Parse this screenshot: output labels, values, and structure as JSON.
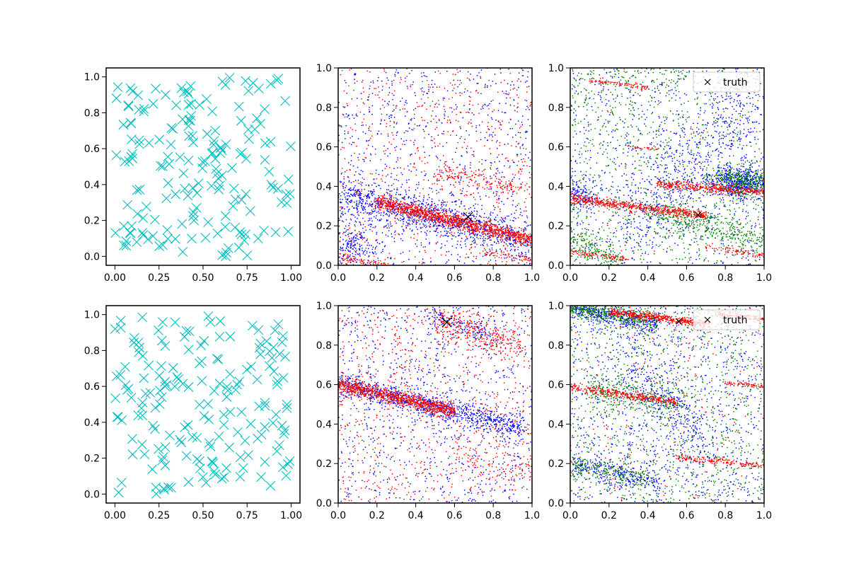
{
  "figure": {
    "background": "#ffffff"
  },
  "chart_data": [
    {
      "panel": "top-left",
      "type": "scatter",
      "marker": "x",
      "xlim": [
        -0.05,
        1.05
      ],
      "ylim": [
        -0.05,
        1.05
      ],
      "xticks": [
        "0.00",
        "0.25",
        "0.50",
        "0.75",
        "1.00"
      ],
      "yticks": [
        "0.0",
        "0.2",
        "0.4",
        "0.6",
        "0.8",
        "1.0"
      ],
      "legend": null,
      "series": [
        {
          "color": "#00bfbf",
          "marker": "x",
          "seed": 11,
          "count": 180,
          "clusters": [
            {
              "kind": "uniform",
              "x": [
                0.0,
                1.0
              ],
              "y": [
                0.0,
                1.0
              ],
              "frac": 1.0
            }
          ]
        }
      ]
    },
    {
      "panel": "top-middle",
      "type": "scatter",
      "marker": "dot",
      "xlim": [
        0,
        1
      ],
      "ylim": [
        0,
        1
      ],
      "xticks": [
        "0.0",
        "0.2",
        "0.4",
        "0.6",
        "0.8",
        "1.0"
      ],
      "yticks": [
        "0.0",
        "0.2",
        "0.4",
        "0.6",
        "0.8",
        "1.0"
      ],
      "legend": null,
      "truth": {
        "x": 0.67,
        "y": 0.245,
        "size": "large"
      },
      "series": [
        {
          "color": "#0000ff",
          "seed": 21,
          "count": 2200,
          "clusters": [
            {
              "kind": "band",
              "x0": 0.0,
              "x1": 1.0,
              "y0": 0.36,
              "y1": 0.12,
              "spread": 0.05,
              "frac": 0.5
            },
            {
              "kind": "blob",
              "cx": 0.08,
              "cy": 0.1,
              "sx": 0.07,
              "sy": 0.06,
              "frac": 0.1
            },
            {
              "kind": "uniform",
              "x": [
                0.0,
                1.0
              ],
              "y": [
                0.0,
                1.0
              ],
              "frac": 0.4
            }
          ]
        },
        {
          "color": "#ff0000",
          "seed": 22,
          "count": 2200,
          "clusters": [
            {
              "kind": "band",
              "x0": 0.2,
              "x1": 1.0,
              "y0": 0.32,
              "y1": 0.13,
              "spread": 0.018,
              "frac": 0.55
            },
            {
              "kind": "band",
              "x0": 0.5,
              "x1": 0.95,
              "y0": 0.47,
              "y1": 0.4,
              "spread": 0.025,
              "frac": 0.08
            },
            {
              "kind": "band",
              "x0": 0.0,
              "x1": 0.25,
              "y0": 0.04,
              "y1": 0.0,
              "spread": 0.012,
              "frac": 0.04
            },
            {
              "kind": "band",
              "x0": 0.75,
              "x1": 1.0,
              "y0": 0.06,
              "y1": 0.03,
              "spread": 0.012,
              "frac": 0.03
            },
            {
              "kind": "uniform",
              "x": [
                0.0,
                1.0
              ],
              "y": [
                0.0,
                1.0
              ],
              "frac": 0.3
            }
          ]
        }
      ]
    },
    {
      "panel": "top-right",
      "type": "scatter",
      "marker": "dot",
      "xlim": [
        0,
        1
      ],
      "ylim": [
        0,
        1
      ],
      "xticks": [
        "0.0",
        "0.2",
        "0.4",
        "0.6",
        "0.8",
        "1.0"
      ],
      "yticks": [
        "0.0",
        "0.2",
        "0.4",
        "0.6",
        "0.8",
        "1.0"
      ],
      "legend": {
        "label": "truth",
        "position": "top-right"
      },
      "truth": {
        "x": 0.66,
        "y": 0.255,
        "size": "small"
      },
      "series": [
        {
          "color": "#0000ff",
          "seed": 31,
          "count": 2000,
          "clusters": [
            {
              "kind": "blob",
              "cx": 0.88,
              "cy": 0.42,
              "sx": 0.08,
              "sy": 0.04,
              "frac": 0.25
            },
            {
              "kind": "blob",
              "cx": 0.05,
              "cy": 0.35,
              "sx": 0.05,
              "sy": 0.04,
              "frac": 0.08
            },
            {
              "kind": "band",
              "x0": 0.3,
              "x1": 1.0,
              "y0": 0.2,
              "y1": 0.85,
              "spread": 0.15,
              "frac": 0.3
            },
            {
              "kind": "uniform",
              "x": [
                0.0,
                1.0
              ],
              "y": [
                0.0,
                1.0
              ],
              "frac": 0.37
            }
          ]
        },
        {
          "color": "#008000",
          "seed": 32,
          "count": 2000,
          "clusters": [
            {
              "kind": "blob",
              "cx": 0.88,
              "cy": 0.42,
              "sx": 0.08,
              "sy": 0.04,
              "frac": 0.2
            },
            {
              "kind": "band",
              "x0": 0.4,
              "x1": 1.0,
              "y0": 0.28,
              "y1": 0.12,
              "spread": 0.04,
              "frac": 0.2
            },
            {
              "kind": "band",
              "x0": 0.0,
              "x1": 0.25,
              "y0": 0.15,
              "y1": 0.0,
              "spread": 0.04,
              "frac": 0.1
            },
            {
              "kind": "band",
              "x0": 0.0,
              "x1": 0.6,
              "y0": 0.92,
              "y1": 1.0,
              "spread": 0.06,
              "frac": 0.05
            },
            {
              "kind": "uniform",
              "x": [
                0.0,
                1.0
              ],
              "y": [
                0.0,
                1.0
              ],
              "frac": 0.45
            }
          ]
        },
        {
          "color": "#ff0000",
          "seed": 33,
          "count": 1300,
          "clusters": [
            {
              "kind": "band",
              "x0": 0.0,
              "x1": 0.7,
              "y0": 0.34,
              "y1": 0.25,
              "spread": 0.012,
              "frac": 0.45
            },
            {
              "kind": "band",
              "x0": 0.45,
              "x1": 1.0,
              "y0": 0.41,
              "y1": 0.37,
              "spread": 0.012,
              "frac": 0.3
            },
            {
              "kind": "band",
              "x0": 0.0,
              "x1": 0.3,
              "y0": 0.07,
              "y1": 0.03,
              "spread": 0.008,
              "frac": 0.07
            },
            {
              "kind": "band",
              "x0": 0.7,
              "x1": 1.0,
              "y0": 0.09,
              "y1": 0.05,
              "spread": 0.008,
              "frac": 0.06
            },
            {
              "kind": "band",
              "x0": 0.1,
              "x1": 0.4,
              "y0": 0.94,
              "y1": 0.9,
              "spread": 0.006,
              "frac": 0.07
            },
            {
              "kind": "band",
              "x0": 0.3,
              "x1": 0.45,
              "y0": 0.6,
              "y1": 0.59,
              "spread": 0.005,
              "frac": 0.02
            },
            {
              "kind": "uniform",
              "x": [
                0.0,
                1.0
              ],
              "y": [
                0.0,
                1.0
              ],
              "frac": 0.03
            }
          ]
        }
      ]
    },
    {
      "panel": "bottom-left",
      "type": "scatter",
      "marker": "x",
      "xlim": [
        -0.05,
        1.05
      ],
      "ylim": [
        -0.05,
        1.05
      ],
      "xticks": [
        "0.00",
        "0.25",
        "0.50",
        "0.75",
        "1.00"
      ],
      "yticks": [
        "0.0",
        "0.2",
        "0.4",
        "0.6",
        "0.8",
        "1.0"
      ],
      "legend": null,
      "series": [
        {
          "color": "#00bfbf",
          "marker": "x",
          "seed": 41,
          "count": 180,
          "clusters": [
            {
              "kind": "uniform",
              "x": [
                0.0,
                1.0
              ],
              "y": [
                0.0,
                1.0
              ],
              "frac": 1.0
            }
          ]
        }
      ]
    },
    {
      "panel": "bottom-middle",
      "type": "scatter",
      "marker": "dot",
      "xlim": [
        0,
        1
      ],
      "ylim": [
        0,
        1
      ],
      "xticks": [
        "0.0",
        "0.2",
        "0.4",
        "0.6",
        "0.8",
        "1.0"
      ],
      "yticks": [
        "0.0",
        "0.2",
        "0.4",
        "0.6",
        "0.8",
        "1.0"
      ],
      "legend": null,
      "truth": {
        "x": 0.56,
        "y": 0.915,
        "size": "large"
      },
      "series": [
        {
          "color": "#0000ff",
          "seed": 51,
          "count": 2000,
          "clusters": [
            {
              "kind": "band",
              "x0": 0.0,
              "x1": 0.95,
              "y0": 0.6,
              "y1": 0.38,
              "spread": 0.03,
              "frac": 0.45
            },
            {
              "kind": "band",
              "x0": 0.45,
              "x1": 0.8,
              "y0": 0.95,
              "y1": 0.85,
              "spread": 0.03,
              "frac": 0.07
            },
            {
              "kind": "uniform",
              "x": [
                0.0,
                1.0
              ],
              "y": [
                0.0,
                1.0
              ],
              "frac": 0.48
            }
          ]
        },
        {
          "color": "#ff0000",
          "seed": 52,
          "count": 2200,
          "clusters": [
            {
              "kind": "band",
              "x0": 0.0,
              "x1": 0.6,
              "y0": 0.6,
              "y1": 0.47,
              "spread": 0.018,
              "frac": 0.45
            },
            {
              "kind": "band",
              "x0": 0.5,
              "x1": 0.95,
              "y0": 0.93,
              "y1": 0.8,
              "spread": 0.04,
              "frac": 0.14
            },
            {
              "kind": "band",
              "x0": 0.6,
              "x1": 1.0,
              "y0": 0.25,
              "y1": 0.15,
              "spread": 0.04,
              "frac": 0.05
            },
            {
              "kind": "uniform",
              "x": [
                0.0,
                1.0
              ],
              "y": [
                0.0,
                1.0
              ],
              "frac": 0.36
            }
          ]
        }
      ]
    },
    {
      "panel": "bottom-right",
      "type": "scatter",
      "marker": "dot",
      "xlim": [
        0,
        1
      ],
      "ylim": [
        0,
        1
      ],
      "xticks": [
        "0.0",
        "0.2",
        "0.4",
        "0.6",
        "0.8",
        "1.0"
      ],
      "yticks": [
        "0.0",
        "0.2",
        "0.4",
        "0.6",
        "0.8",
        "1.0"
      ],
      "legend": {
        "label": "truth",
        "position": "top-right"
      },
      "truth": {
        "x": 0.56,
        "y": 0.92,
        "size": "small"
      },
      "series": [
        {
          "color": "#0000ff",
          "seed": 61,
          "count": 2000,
          "clusters": [
            {
              "kind": "band",
              "x0": 0.0,
              "x1": 0.45,
              "y0": 0.99,
              "y1": 0.9,
              "spread": 0.025,
              "frac": 0.2
            },
            {
              "kind": "band",
              "x0": 0.0,
              "x1": 0.45,
              "y0": 0.2,
              "y1": 0.1,
              "spread": 0.03,
              "frac": 0.12
            },
            {
              "kind": "band",
              "x0": 0.3,
              "x1": 0.7,
              "y0": 0.7,
              "y1": 0.3,
              "spread": 0.08,
              "frac": 0.15
            },
            {
              "kind": "uniform",
              "x": [
                0.0,
                1.0
              ],
              "y": [
                0.0,
                1.0
              ],
              "frac": 0.53
            }
          ]
        },
        {
          "color": "#008000",
          "seed": 62,
          "count": 1900,
          "clusters": [
            {
              "kind": "band",
              "x0": 0.0,
              "x1": 0.45,
              "y0": 0.99,
              "y1": 0.92,
              "spread": 0.025,
              "frac": 0.22
            },
            {
              "kind": "band",
              "x0": 0.1,
              "x1": 0.6,
              "y0": 0.58,
              "y1": 0.48,
              "spread": 0.04,
              "frac": 0.15
            },
            {
              "kind": "band",
              "x0": 0.0,
              "x1": 0.4,
              "y0": 0.2,
              "y1": 0.12,
              "spread": 0.03,
              "frac": 0.1
            },
            {
              "kind": "uniform",
              "x": [
                0.0,
                1.0
              ],
              "y": [
                0.0,
                1.0
              ],
              "frac": 0.53
            }
          ]
        },
        {
          "color": "#ff0000",
          "seed": 63,
          "count": 1400,
          "clusters": [
            {
              "kind": "band",
              "x0": 0.2,
              "x1": 0.72,
              "y0": 0.97,
              "y1": 0.905,
              "spread": 0.01,
              "frac": 0.35
            },
            {
              "kind": "band",
              "x0": 0.0,
              "x1": 0.55,
              "y0": 0.59,
              "y1": 0.51,
              "spread": 0.01,
              "frac": 0.25
            },
            {
              "kind": "band",
              "x0": 0.55,
              "x1": 1.0,
              "y0": 0.23,
              "y1": 0.19,
              "spread": 0.008,
              "frac": 0.12
            },
            {
              "kind": "band",
              "x0": 0.8,
              "x1": 1.0,
              "y0": 0.61,
              "y1": 0.59,
              "spread": 0.006,
              "frac": 0.05
            },
            {
              "kind": "band",
              "x0": 0.75,
              "x1": 1.0,
              "y0": 0.96,
              "y1": 0.93,
              "spread": 0.01,
              "frac": 0.1
            },
            {
              "kind": "uniform",
              "x": [
                0.0,
                1.0
              ],
              "y": [
                0.0,
                1.0
              ],
              "frac": 0.13
            }
          ]
        }
      ]
    }
  ]
}
